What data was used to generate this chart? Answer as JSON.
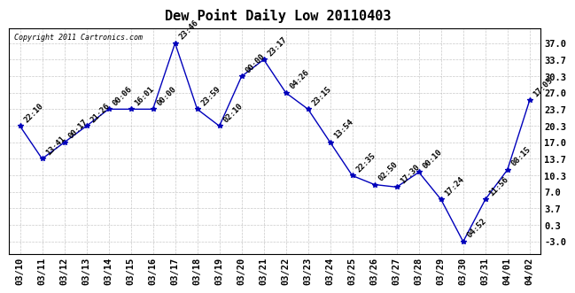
{
  "title": "Dew Point Daily Low 20110403",
  "copyright": "Copyright 2011 Cartronics.com",
  "x_labels": [
    "03/10",
    "03/11",
    "03/12",
    "03/13",
    "03/14",
    "03/15",
    "03/16",
    "03/17",
    "03/18",
    "03/19",
    "03/20",
    "03/21",
    "03/22",
    "03/23",
    "03/24",
    "03/25",
    "03/26",
    "03/27",
    "03/28",
    "03/29",
    "03/30",
    "03/31",
    "04/01",
    "04/02"
  ],
  "y_values": [
    20.3,
    13.7,
    17.0,
    20.3,
    23.7,
    23.7,
    23.7,
    37.0,
    23.7,
    20.3,
    30.3,
    33.7,
    27.0,
    23.7,
    17.0,
    10.3,
    8.5,
    8.0,
    11.0,
    5.5,
    -3.0,
    5.5,
    11.5,
    25.5
  ],
  "point_labels": [
    "22:10",
    "13:41",
    "00:17",
    "21:26",
    "00:06",
    "16:01",
    "00:00",
    "23:46",
    "23:59",
    "02:10",
    "00:00",
    "23:17",
    "04:26",
    "23:15",
    "13:54",
    "22:35",
    "02:50",
    "17:30",
    "00:10",
    "17:24",
    "04:52",
    "11:56",
    "08:15",
    "17:05"
  ],
  "y_ticks": [
    -3.0,
    0.3,
    3.7,
    7.0,
    10.3,
    13.7,
    17.0,
    20.3,
    23.7,
    27.0,
    30.3,
    33.7,
    37.0
  ],
  "ylim": [
    -5.5,
    40.0
  ],
  "xlim": [
    -0.5,
    23.5
  ],
  "line_color": "#0000bb",
  "marker_color": "#0000bb",
  "bg_color": "#ffffff",
  "grid_color": "#bbbbbb",
  "title_fontsize": 11,
  "label_fontsize": 7.5,
  "annotation_fontsize": 6.5
}
